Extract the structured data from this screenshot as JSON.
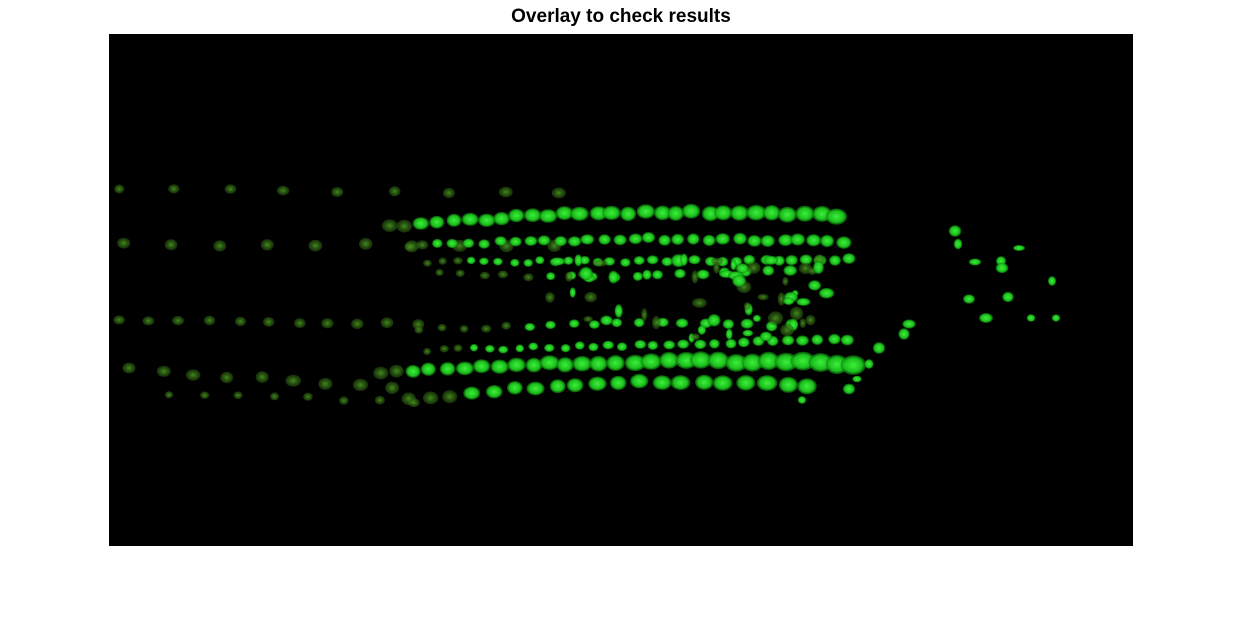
{
  "figure": {
    "title": "Overlay to check results",
    "background": "#000000",
    "overlay_color": "#22e022"
  }
}
